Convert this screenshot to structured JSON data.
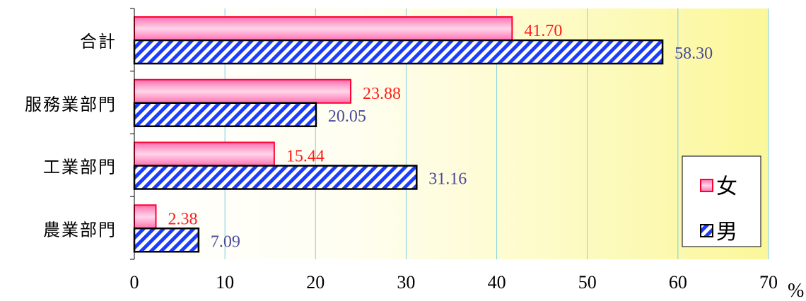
{
  "chart_data": {
    "type": "bar",
    "orientation": "horizontal",
    "categories": [
      "合計",
      "服務業部門",
      "工業部門",
      "農業部門"
    ],
    "series": [
      {
        "name": "女",
        "values": [
          41.7,
          23.88,
          15.44,
          2.38
        ],
        "color": "#ff80b0",
        "border": "#ff0033"
      },
      {
        "name": "男",
        "values": [
          58.3,
          20.05,
          31.16,
          7.09
        ],
        "color": "#1a3cff",
        "border": "#000000",
        "pattern": "diagonal-hatch"
      }
    ],
    "xlim": [
      0,
      70
    ],
    "xticks": [
      0,
      10,
      20,
      30,
      40,
      50,
      60,
      70
    ],
    "xunit": "%",
    "value_labels": {
      "female": [
        "41.70",
        "23.88",
        "15.44",
        "2.38"
      ],
      "male": [
        "58.30",
        "20.05",
        "31.16",
        "7.09"
      ]
    },
    "grid": true,
    "legend_position": "bottom-right",
    "background": "gradient white to yellow"
  }
}
